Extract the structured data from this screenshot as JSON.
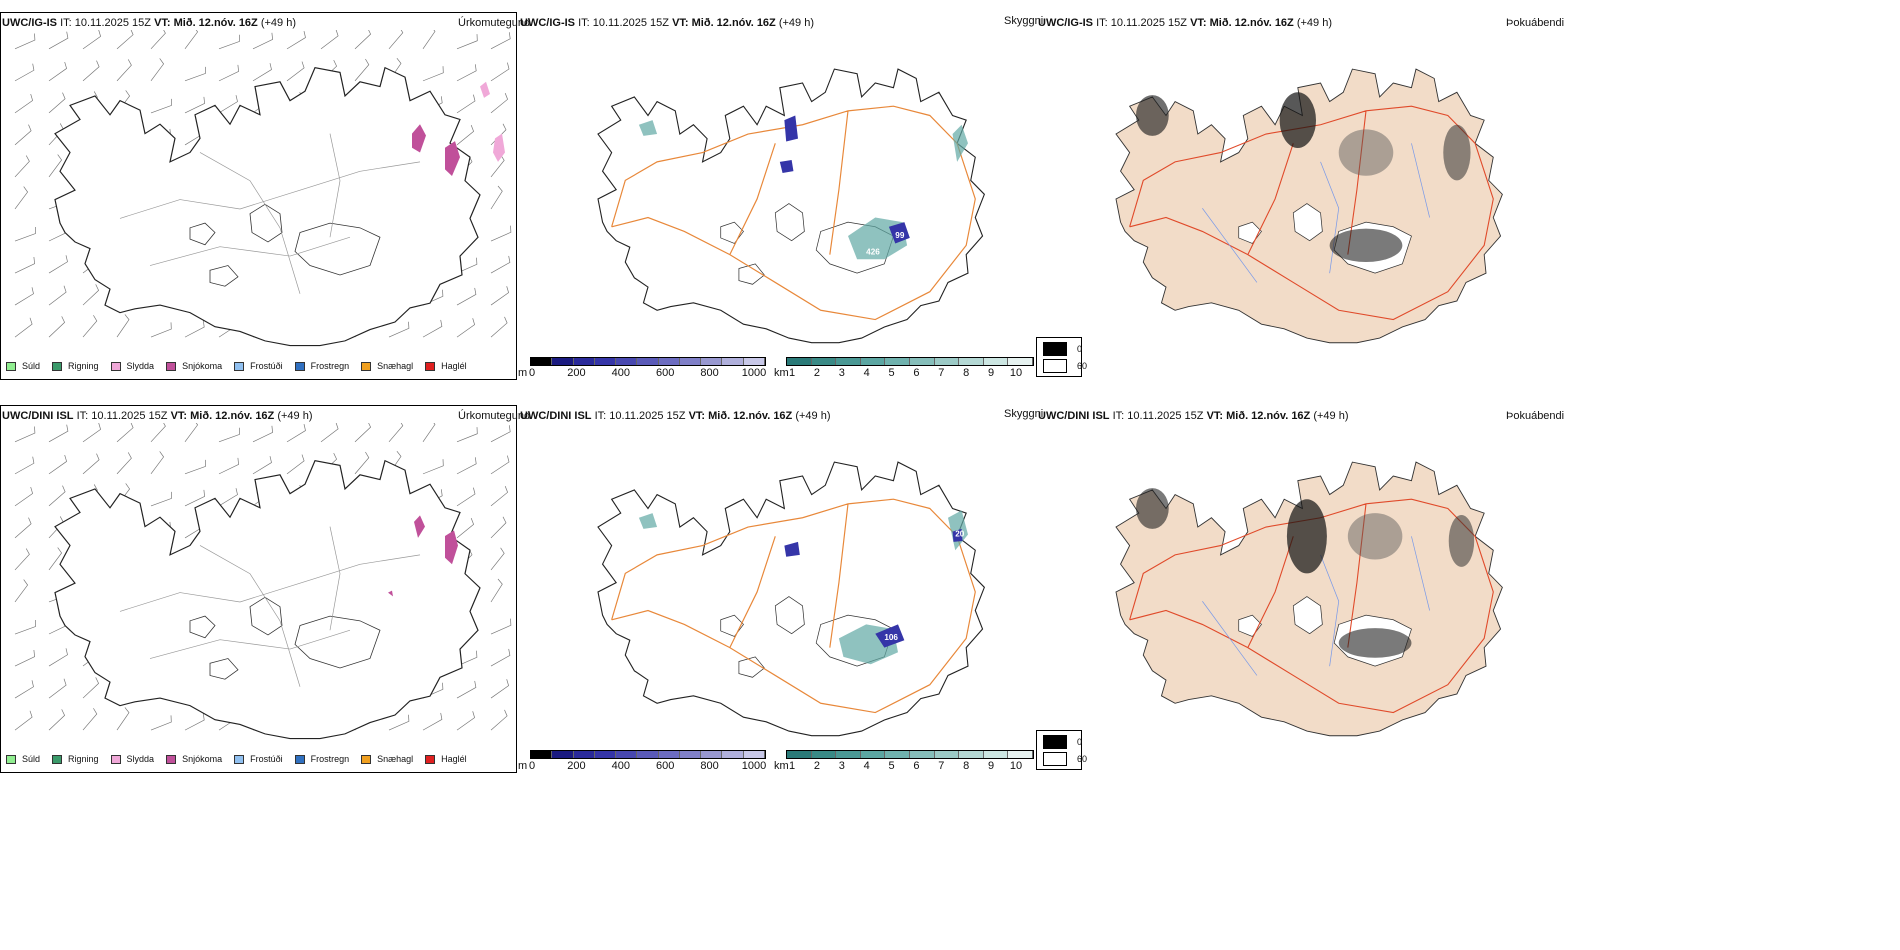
{
  "rows": [
    {
      "model": "UWC/IG-IS",
      "it_label": "IT:",
      "it_value": "10.11.2025 15Z",
      "vt_label": "VT:",
      "vt_value": "Mið. 12.nóv. 16Z",
      "lead": "(+49 h)",
      "precip_title": "Úrkomutegund",
      "visibility_title": "Skyggni",
      "fog_title": "Þokuábendi"
    },
    {
      "model": "UWC/DINI ISL",
      "it_label": "IT:",
      "it_value": "10.11.2025 15Z",
      "vt_label": "VT:",
      "vt_value": "Mið. 12.nóv. 16Z",
      "lead": "(+49 h)",
      "precip_title": "Úrkomutegund",
      "visibility_title": "Skyggni",
      "fog_title": "Þokuábendi"
    }
  ],
  "precip_legend": [
    {
      "label": "Súld",
      "color": "#90ee90"
    },
    {
      "label": "Rigning",
      "color": "#3a9a6a"
    },
    {
      "label": "Slydda",
      "color": "#f0a8d8"
    },
    {
      "label": "Snjókoma",
      "color": "#c0509a"
    },
    {
      "label": "Frostúði",
      "color": "#90c0f0"
    },
    {
      "label": "Frostregn",
      "color": "#3070c0"
    },
    {
      "label": "Snæhagl",
      "color": "#f0a020"
    },
    {
      "label": "Haglél",
      "color": "#e02020"
    }
  ],
  "cloud_base_bar": {
    "unit": "m",
    "ticks": [
      "0",
      "200",
      "400",
      "600",
      "800",
      "1000"
    ],
    "colors": [
      "#000000",
      "#1a1a80",
      "#2a2a9a",
      "#3535a8",
      "#4848b0",
      "#5a5ab8",
      "#6c6cc0",
      "#8080c8",
      "#9898d0",
      "#b0b0dc",
      "#c8c8e8"
    ]
  },
  "visibility_bar": {
    "unit": "km",
    "ticks": [
      "1",
      "2",
      "3",
      "4",
      "5",
      "6",
      "7",
      "8",
      "9",
      "10"
    ],
    "colors": [
      "#2a7a78",
      "#3a8a86",
      "#4a9894",
      "#5ca6a2",
      "#70b2ae",
      "#86beba",
      "#9ccac6",
      "#b4d8d4",
      "#cce6e2",
      "#e6f2f0"
    ]
  },
  "fog_box": [
    {
      "value": "0",
      "color": "#000000"
    },
    {
      "value": "60",
      "color": "#ffffff"
    }
  ],
  "visibility_labels_row1": [
    "99",
    "426"
  ],
  "visibility_labels_row2": [
    "106",
    "20"
  ],
  "colors": {
    "roads_orange": "#e8883a",
    "roads_red": "#e04a2a",
    "land_fog": "#f2dcc8",
    "rivers": "#7a9ae8",
    "snow_pink": "#c0509a",
    "vis_teal": "#5fa8a4",
    "cb_blue": "#3535a8"
  },
  "icons": [
    "iceland-coastline",
    "wind-barb"
  ]
}
